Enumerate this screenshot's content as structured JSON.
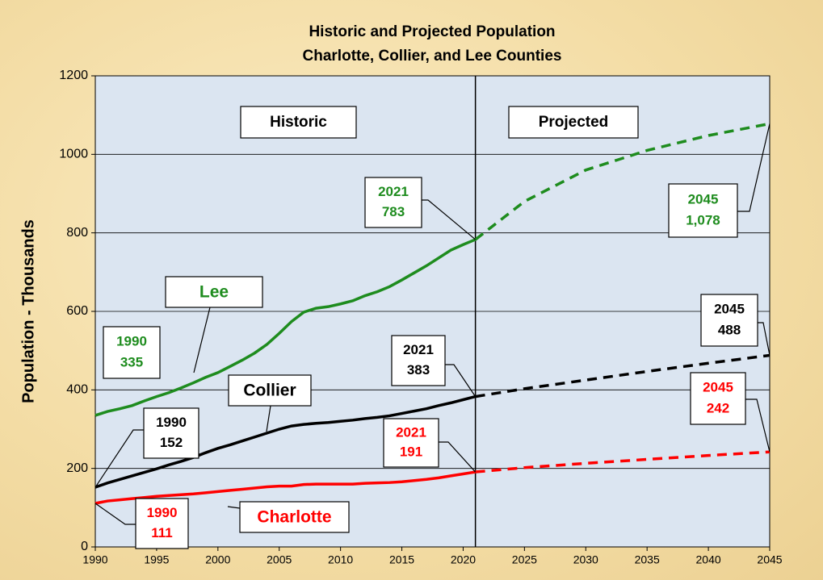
{
  "chart_data": {
    "type": "line",
    "title": [
      "Historic and Projected Population",
      "Charlotte, Collier, and Lee Counties"
    ],
    "ylabel": "Population - Thousands",
    "region_labels": [
      "Historic",
      "Projected"
    ],
    "projection_start": 2021,
    "x": [
      1990,
      1991,
      1992,
      1993,
      1994,
      1995,
      1996,
      1997,
      1998,
      1999,
      2000,
      2001,
      2002,
      2003,
      2004,
      2005,
      2006,
      2007,
      2008,
      2009,
      2010,
      2011,
      2012,
      2013,
      2014,
      2015,
      2016,
      2017,
      2018,
      2019,
      2020,
      2021,
      2025,
      2030,
      2035,
      2040,
      2045
    ],
    "series": [
      {
        "name": "Lee",
        "color": "#1e8c1e",
        "values": [
          335,
          345,
          352,
          360,
          372,
          383,
          393,
          405,
          418,
          432,
          444,
          460,
          476,
          494,
          516,
          544,
          574,
          598,
          608,
          612,
          619,
          627,
          640,
          650,
          663,
          680,
          698,
          716,
          736,
          756,
          770,
          783,
          880,
          960,
          1010,
          1048,
          1078
        ],
        "value_labels": [
          335,
          null,
          null,
          null,
          null,
          null,
          null,
          null,
          null,
          null,
          null,
          null,
          null,
          null,
          null,
          null,
          null,
          null,
          null,
          null,
          null,
          null,
          null,
          null,
          null,
          null,
          null,
          null,
          null,
          null,
          null,
          783,
          null,
          null,
          null,
          null,
          "1,078"
        ]
      },
      {
        "name": "Collier",
        "color": "#000000",
        "values": [
          152,
          163,
          172,
          181,
          190,
          199,
          209,
          218,
          228,
          240,
          251,
          260,
          270,
          280,
          290,
          300,
          308,
          312,
          315,
          317,
          320,
          323,
          327,
          330,
          334,
          340,
          346,
          352,
          360,
          367,
          375,
          383,
          403,
          425,
          447,
          468,
          488
        ],
        "value_labels": [
          152,
          null,
          null,
          null,
          null,
          null,
          null,
          null,
          null,
          null,
          null,
          null,
          null,
          null,
          null,
          null,
          null,
          null,
          null,
          null,
          null,
          null,
          null,
          null,
          null,
          null,
          null,
          null,
          null,
          null,
          null,
          383,
          null,
          null,
          null,
          null,
          488
        ]
      },
      {
        "name": "Charlotte",
        "color": "#ff0000",
        "values": [
          111,
          117,
          120,
          123,
          126,
          129,
          131,
          133,
          135,
          138,
          141,
          144,
          147,
          150,
          153,
          155,
          155,
          159,
          160,
          160,
          160,
          160,
          162,
          163,
          164,
          166,
          169,
          172,
          176,
          181,
          186,
          191,
          202,
          213,
          223,
          233,
          242
        ],
        "value_labels": [
          111,
          null,
          null,
          null,
          null,
          null,
          null,
          null,
          null,
          null,
          null,
          null,
          null,
          null,
          null,
          null,
          null,
          null,
          null,
          null,
          null,
          null,
          null,
          null,
          null,
          null,
          null,
          null,
          null,
          null,
          null,
          191,
          null,
          null,
          null,
          null,
          242
        ]
      }
    ],
    "xlim": [
      1990,
      2045
    ],
    "xticks": [
      1990,
      1995,
      2000,
      2005,
      2010,
      2015,
      2020,
      2025,
      2030,
      2035,
      2040,
      2045
    ],
    "ylim": [
      0,
      1200
    ],
    "yticks": [
      0,
      200,
      400,
      600,
      800,
      1000,
      1200
    ],
    "grid": true
  }
}
